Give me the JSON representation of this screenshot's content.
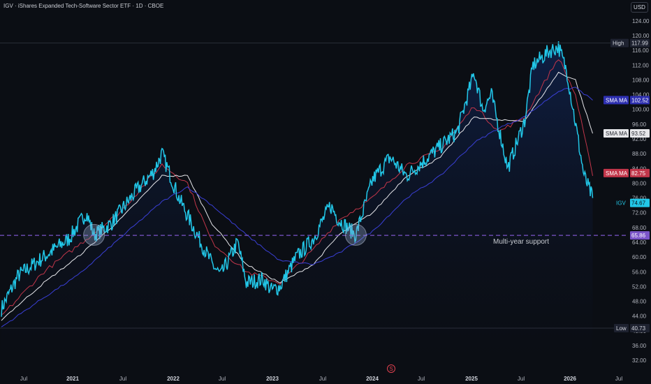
{
  "header": {
    "title": "IGV · iShares Expanded Tech-Software Sector ETF · 1D · CBOE",
    "currency": "USD"
  },
  "colors": {
    "background": "#0b0e14",
    "price_line": "#22c7e8",
    "sma_fast": "#c2364a",
    "sma_mid": "#e6e6ea",
    "sma_slow": "#3a3fd6",
    "support_line": "#7b55c9",
    "area_fill": "#0f2048"
  },
  "chart_data": {
    "type": "line",
    "ylim": [
      30.5,
      125.5
    ],
    "y_ticks": [
      32,
      36,
      40,
      44,
      48,
      52,
      56,
      60,
      64,
      68,
      72,
      76,
      80,
      84,
      88,
      92,
      96,
      100,
      104,
      108,
      112,
      116,
      120,
      124
    ],
    "x_ticks": [
      "Jul",
      "2021",
      "Jul",
      "2022",
      "Jul",
      "2023",
      "Jul",
      "2024",
      "Jul",
      "2025",
      "Jul",
      "2026",
      "Jul"
    ],
    "x_tick_bold": [
      false,
      true,
      false,
      true,
      false,
      true,
      false,
      true,
      false,
      true,
      false,
      true,
      false
    ],
    "series": [
      {
        "role": "price",
        "x": [
          "2020-04",
          "2020-06",
          "2020-09",
          "2020-12",
          "2021-02",
          "2021-03",
          "2021-05",
          "2021-08",
          "2021-10",
          "2021-11",
          "2022-01",
          "2022-03",
          "2022-05",
          "2022-06",
          "2022-08",
          "2022-09",
          "2022-11",
          "2022-12",
          "2023-01",
          "2023-03",
          "2023-05",
          "2023-07",
          "2023-08",
          "2023-10",
          "2023-12",
          "2024-02",
          "2024-04",
          "2024-06",
          "2024-08",
          "2024-10",
          "2024-12",
          "2025-01",
          "2025-02",
          "2025-04",
          "2025-06",
          "2025-07",
          "2025-09",
          "2025-10",
          "2025-11",
          "2026-01",
          "2026-02"
        ],
        "y": [
          46,
          55,
          60,
          65,
          72,
          66,
          69,
          78,
          83,
          88,
          76,
          67,
          58,
          55,
          64,
          53,
          54,
          51,
          52,
          60,
          65,
          74,
          70,
          66,
          81,
          87,
          82,
          86,
          90,
          94,
          110,
          100,
          104,
          84,
          97,
          112,
          116,
          117,
          110,
          82,
          76
        ]
      },
      {
        "role": "sma_fast",
        "x": [
          "2020-04",
          "2020-09",
          "2021-01",
          "2021-06",
          "2021-11",
          "2022-02",
          "2022-05",
          "2022-09",
          "2023-01",
          "2023-05",
          "2023-08",
          "2023-12",
          "2024-04",
          "2024-08",
          "2024-12",
          "2025-03",
          "2025-06",
          "2025-10",
          "2025-12",
          "2026-02"
        ],
        "y": [
          44,
          56,
          63,
          72,
          85,
          80,
          64,
          56,
          53,
          62,
          70,
          76,
          85,
          89,
          101,
          94,
          98,
          114,
          104,
          82
        ]
      },
      {
        "role": "sma_mid",
        "x": [
          "2020-04",
          "2020-09",
          "2021-01",
          "2021-06",
          "2021-11",
          "2022-02",
          "2022-05",
          "2022-09",
          "2023-01",
          "2023-05",
          "2023-08",
          "2023-12",
          "2024-04",
          "2024-08",
          "2024-12",
          "2025-03",
          "2025-06",
          "2025-10",
          "2025-12",
          "2026-02"
        ],
        "y": [
          43,
          53,
          60,
          70,
          82,
          82,
          69,
          58,
          53,
          58,
          66,
          72,
          82,
          87,
          98,
          97,
          97,
          110,
          108,
          93.5
        ]
      },
      {
        "role": "sma_slow",
        "x": [
          "2020-04",
          "2020-09",
          "2021-01",
          "2021-06",
          "2021-11",
          "2022-02",
          "2022-05",
          "2022-09",
          "2023-01",
          "2023-05",
          "2023-08",
          "2023-12",
          "2024-04",
          "2024-08",
          "2024-12",
          "2025-03",
          "2025-06",
          "2025-10",
          "2025-12",
          "2026-02"
        ],
        "y": [
          41,
          49,
          55,
          65,
          75,
          79,
          74,
          66,
          59,
          58,
          61,
          67,
          76,
          82,
          91,
          95,
          98,
          105,
          106,
          102.5
        ]
      }
    ],
    "price_labels": [
      {
        "name": "High",
        "value": "117.99",
        "y": 117.99
      },
      {
        "name": "SMA MA",
        "value": "102.52",
        "y": 102.52
      },
      {
        "name": "SMA MA",
        "value": "93.52",
        "y": 93.52
      },
      {
        "name": "SMA MA",
        "value": "82.75",
        "y": 82.75
      },
      {
        "name": "IGV",
        "value": "74.67",
        "y": 74.67
      },
      {
        "name": "",
        "value": "65.86",
        "y": 65.86
      },
      {
        "name": "Low",
        "value": "40.73",
        "y": 40.73
      }
    ],
    "support": {
      "value": 65.86,
      "label": "Multi-year support"
    },
    "highlights": [
      {
        "x": "2021-03",
        "y": 66
      },
      {
        "x": "2023-10",
        "y": 66
      }
    ],
    "marker": "S",
    "grid": false
  }
}
